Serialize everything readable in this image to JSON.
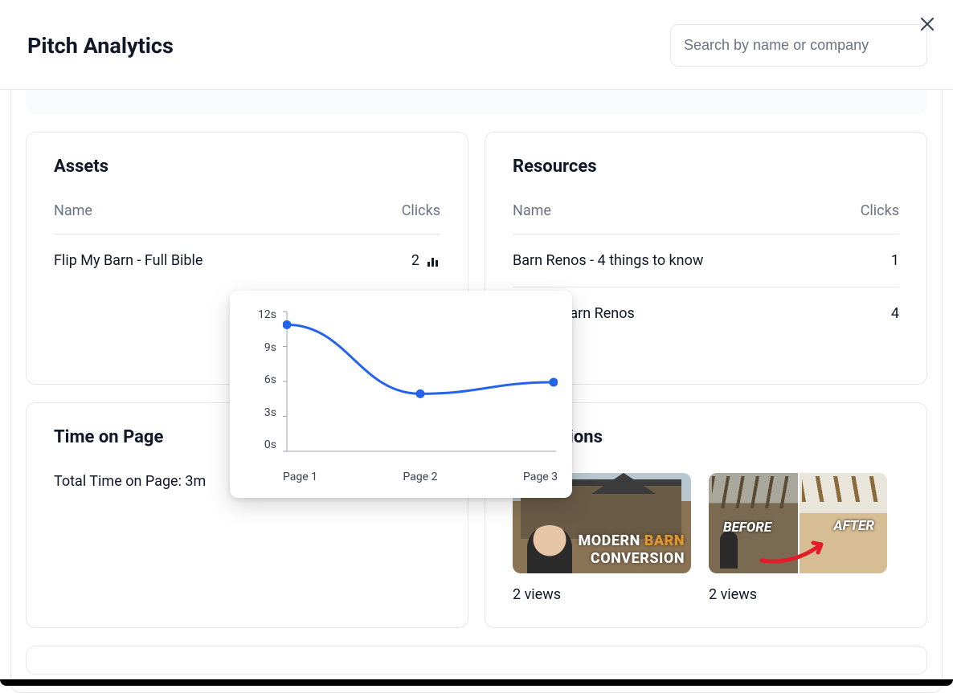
{
  "header": {
    "title": "Pitch Analytics",
    "search_placeholder": "Search by name or company"
  },
  "assets": {
    "title": "Assets",
    "col_name": "Name",
    "col_clicks": "Clicks",
    "rows": [
      {
        "name": "Flip My Barn - Full Bible",
        "clicks": "2"
      }
    ]
  },
  "resources": {
    "title": "Resources",
    "col_name": "Name",
    "col_clicks": "Clicks",
    "rows": [
      {
        "name": "Barn Renos - 4 things to know",
        "clicks": "1"
      },
      {
        "name": "Guide - Barn Renos",
        "clicks": "4"
      }
    ]
  },
  "time_on_page": {
    "title": "Time on Page",
    "total_label": "Total Time on Page: 3m"
  },
  "video": {
    "title_fragment": "nteractions",
    "items": [
      {
        "caption": "2 views"
      },
      {
        "caption": "2 views"
      }
    ]
  },
  "thumb1": {
    "line1_a": "MODERN ",
    "line1_b": "BARN",
    "line2": "CONVERSION"
  },
  "thumb2": {
    "before": "BEFORE",
    "after": "AFTER"
  },
  "chart": {
    "type": "line",
    "x_labels": [
      "Page 1",
      "Page 2",
      "Page 3"
    ],
    "y_ticks": [
      "12s",
      "9s",
      "6s",
      "3s",
      "0s"
    ],
    "ylim": [
      0,
      12
    ],
    "values": [
      11,
      5,
      6
    ],
    "line_color": "#2563eb",
    "marker_color": "#2563eb",
    "marker_radius": 5.5,
    "line_width": 3,
    "axis_color": "#9ca3af",
    "label_color": "#374151",
    "label_fontsize": 14,
    "background_color": "#ffffff"
  },
  "colors": {
    "border": "#e5e7eb",
    "text_muted": "#6b7280",
    "text": "#111827"
  }
}
